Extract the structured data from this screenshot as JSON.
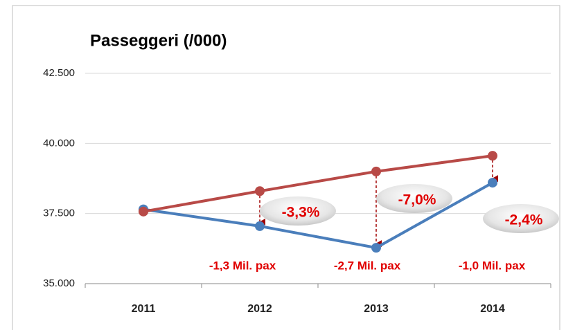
{
  "chart_data": {
    "type": "line",
    "title": "Passeggeri (/000)",
    "categories": [
      "2011",
      "2012",
      "2013",
      "2014"
    ],
    "series": [
      {
        "color": "#4a7ebb",
        "values": [
          37650,
          37050,
          36280,
          38600
        ]
      },
      {
        "color": "#b84a47",
        "values": [
          37570,
          38300,
          39000,
          39560
        ]
      }
    ],
    "ylim": [
      35000,
      42500
    ],
    "yticks": [
      {
        "value": 35000,
        "label": "35.000"
      },
      {
        "value": 37500,
        "label": "37.500"
      },
      {
        "value": 40000,
        "label": "40.000"
      },
      {
        "value": 42500,
        "label": "42.500"
      }
    ],
    "grid": true,
    "annotations": [
      "-3,3%",
      "-7,0%",
      "-2,4%",
      "-1,3 Mil. pax",
      "-2,7 Mil. pax",
      "-1,0 Mil. pax"
    ]
  }
}
